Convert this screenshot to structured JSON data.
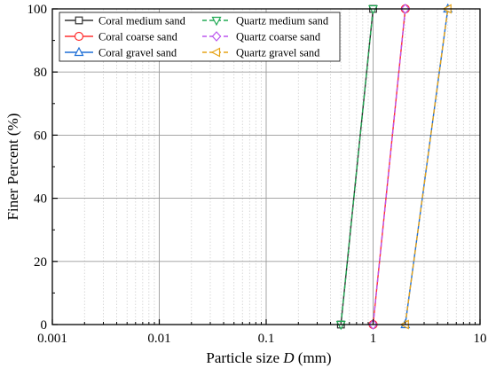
{
  "chart_data": {
    "type": "line",
    "xscale": "log",
    "xlim": [
      0.001,
      10
    ],
    "ylim": [
      0,
      100
    ],
    "xticks": [
      0.001,
      0.01,
      0.1,
      1,
      10
    ],
    "xtick_labels": [
      "0.001",
      "0.01",
      "0.1",
      "1",
      "10"
    ],
    "yticks": [
      0,
      20,
      40,
      60,
      80,
      100
    ],
    "ytick_labels": [
      "0",
      "20",
      "40",
      "60",
      "80",
      "100"
    ],
    "xlabel_prefix": "Particle size ",
    "xlabel_var": "D",
    "xlabel_suffix": " (mm)",
    "ylabel": "Finer Percent (%)",
    "grid": true,
    "legend_position": "top-left",
    "series": [
      {
        "name": "Coral medium sand",
        "color": "#333333",
        "marker": "square",
        "dashed": false,
        "x": [
          0.5,
          1
        ],
        "y": [
          0,
          100
        ]
      },
      {
        "name": "Coral coarse sand",
        "color": "#ff3030",
        "marker": "circle",
        "dashed": false,
        "x": [
          1,
          2
        ],
        "y": [
          0,
          100
        ]
      },
      {
        "name": "Coral gravel sand",
        "color": "#1f6fd6",
        "marker": "triangle-up",
        "dashed": false,
        "x": [
          2,
          5
        ],
        "y": [
          0,
          100
        ]
      },
      {
        "name": "Quartz medium sand",
        "color": "#22aa55",
        "marker": "triangle-down",
        "dashed": true,
        "x": [
          0.5,
          1
        ],
        "y": [
          0,
          100
        ]
      },
      {
        "name": "Quartz coarse sand",
        "color": "#bb55ee",
        "marker": "diamond",
        "dashed": true,
        "x": [
          1,
          2
        ],
        "y": [
          0,
          100
        ]
      },
      {
        "name": "Quartz gravel sand",
        "color": "#e6a317",
        "marker": "triangle-left",
        "dashed": true,
        "x": [
          2,
          5
        ],
        "y": [
          0,
          100
        ]
      }
    ]
  }
}
